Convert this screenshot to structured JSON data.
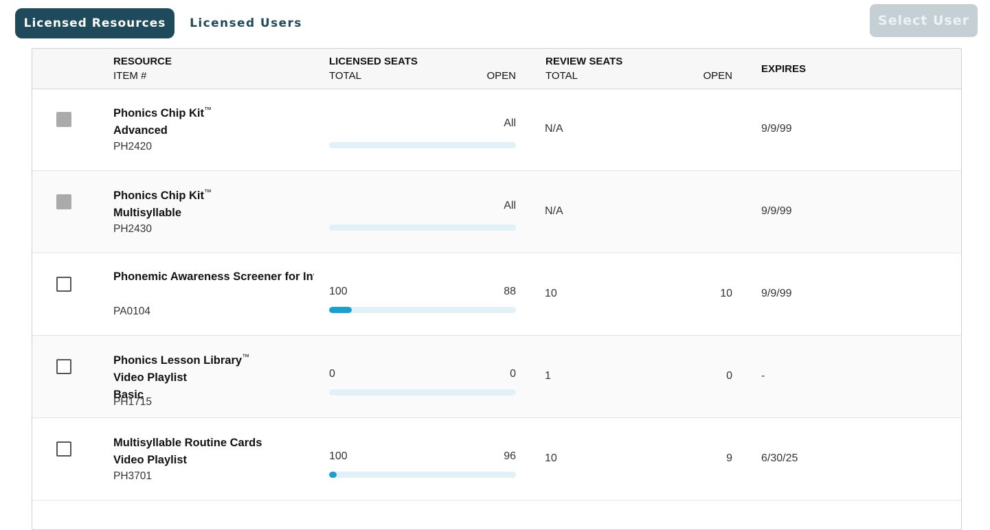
{
  "tabs": {
    "active_label": "Licensed Resources",
    "other_label": "Licensed Users"
  },
  "actions": {
    "select_user_label": "Select User"
  },
  "table": {
    "header": {
      "resource": "RESOURCE",
      "item": "ITEM #",
      "licensed_seats": "LICENSED SEATS",
      "licensed_total": "TOTAL",
      "licensed_open": "OPEN",
      "review_seats": "REVIEW SEATS",
      "review_total": "TOTAL",
      "review_open": "OPEN",
      "expires": "EXPIRES"
    },
    "rows": [
      {
        "lines": [
          "Phonics Chip Kit",
          "Advanced"
        ],
        "tm_on_first_line": true,
        "item": "PH2420",
        "checkbox_disabled": true,
        "licensed_all": "All",
        "licensed_open_fraction": 0,
        "review_total": "N/A",
        "expires": "9/9/99"
      },
      {
        "lines": [
          "Phonics Chip Kit",
          "Multisyllable"
        ],
        "tm_on_first_line": true,
        "item": "PH2430",
        "checkbox_disabled": true,
        "licensed_all": "All",
        "licensed_open_fraction": 0,
        "review_total": "N/A",
        "expires": "9/9/99"
      },
      {
        "lines": [
          "Phonemic Awareness Screener for Intervention"
        ],
        "tm_on_first_line": false,
        "item": "PA0104",
        "checkbox_disabled": false,
        "licensed_total": "100",
        "licensed_open": "88",
        "licensed_used_fraction": 0.12,
        "review_total": "10",
        "review_open": "10",
        "expires": "9/9/99"
      },
      {
        "lines": [
          "Phonics Lesson Library",
          "Video Playlist",
          "Basic"
        ],
        "tm_on_first_line": true,
        "item": "PH1715",
        "checkbox_disabled": false,
        "licensed_total": "0",
        "licensed_open": "0",
        "licensed_used_fraction": 0,
        "review_total": "1",
        "review_open": "0",
        "expires": "-"
      },
      {
        "lines": [
          "Multisyllable Routine Cards",
          "Video Playlist"
        ],
        "tm_on_first_line": false,
        "item": "PH3701",
        "checkbox_disabled": false,
        "licensed_total": "100",
        "licensed_open": "96",
        "licensed_used_fraction": 0.04,
        "review_total": "10",
        "review_open": "9",
        "expires": "6/30/25"
      }
    ],
    "trademark_symbol": "™"
  },
  "colors": {
    "primary": "#1f4a5c",
    "accent_fill": "#17a0d1",
    "track": "#e2f1f7",
    "disabled_button": "#c5d0d5"
  }
}
